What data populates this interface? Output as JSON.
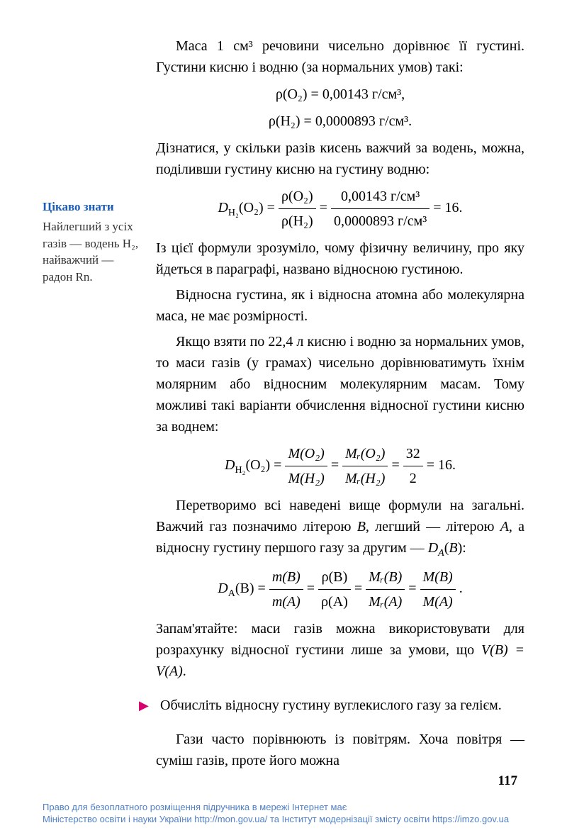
{
  "sidebar": {
    "title": "Цікаво знати",
    "text": "Найлегший з усіх газів — водень H₂, найважчий — радон Rn."
  },
  "main": {
    "p1": "Маса 1 см³ речовини чисельно дорівнює її густині. Густини кисню і водню (за нор­мальних умов) такі:",
    "f1a": "ρ(O₂) = 0,00143 г/см³,",
    "f1b": "ρ(H₂) = 0,0000893 г/см³.",
    "p2": "Дізнатися, у скільки разів кисень важчий за водень, можна, поділивши густину кисню на густину водню:",
    "f2_lhs": "D",
    "f2_sub": "H₂",
    "f2_arg": "(O₂) = ",
    "f2_num1": "ρ(O₂)",
    "f2_den1": "ρ(H₂)",
    "f2_num2": "0,00143 г/см³",
    "f2_den2": "0,0000893 г/см³",
    "f2_eq": " = 16.",
    "p3": "Із цієї формули зрозуміло, чому фізичну величину, про яку йдеться в параграфі, на­звано відносною густиною.",
    "p4": "Відносна густина, як і відносна атомна або молекулярна маса, не має розмірності.",
    "p5": "Якщо взяти по 22,4 л кисню і водню за нормальних умов, то маси газів (у грамах) чисельно дорівнюватимуть їхнім моляр­ним або відносним молекулярним масам. Тому можливі такі варіанти обчислення відносної густини кисню за воднем:",
    "f3_num1": "M(O₂)",
    "f3_den1": "M(H₂)",
    "f3_num2": "Mᵣ(O₂)",
    "f3_den2": "Mᵣ(H₂)",
    "f3_num3": "32",
    "f3_den3": "2",
    "f3_eq": " = 16.",
    "p6a": "Перетворимо всі наведені вище формули на загальні. Важчий газ позначимо літерою ",
    "p6b": ", легший — літерою ",
    "p6c": ", а відносну густину першого газу за другим — ",
    "p6_B": "B",
    "p6_A": "A",
    "p6_D": "D",
    "p6_end": ":",
    "f4_lhs": "D",
    "f4_sub": "A",
    "f4_arg": "(B) = ",
    "f4_n1": "m(B)",
    "f4_d1": "m(A)",
    "f4_n2": "ρ(B)",
    "f4_d2": "ρ(A)",
    "f4_n3": "Mᵣ(B)",
    "f4_d3": "Mᵣ(A)",
    "f4_n4": "M(B)",
    "f4_d4": "M(A)",
    "f4_dot": " .",
    "p7a": "Запам'ятайте: маси газів можна використо­вувати для розрахунку відносної густини лише за умови, що ",
    "p7b": "V(B) = V(A)",
    "p7c": ".",
    "task": "Обчисліть відносну густину вуглекислого газу за гелієм.",
    "p8": "Гази часто порівнюють із повітрям. Хоча повітря — суміш газів, проте його можна"
  },
  "page_number": "117",
  "footer": {
    "line1": "Право для безоплатного розміщення підручника в мережі Інтернет має",
    "line2": "Міністерство освіти і науки України http://mon.gov.ua/ та Інститут модернізації змісту освіти https://imzo.gov.ua"
  }
}
